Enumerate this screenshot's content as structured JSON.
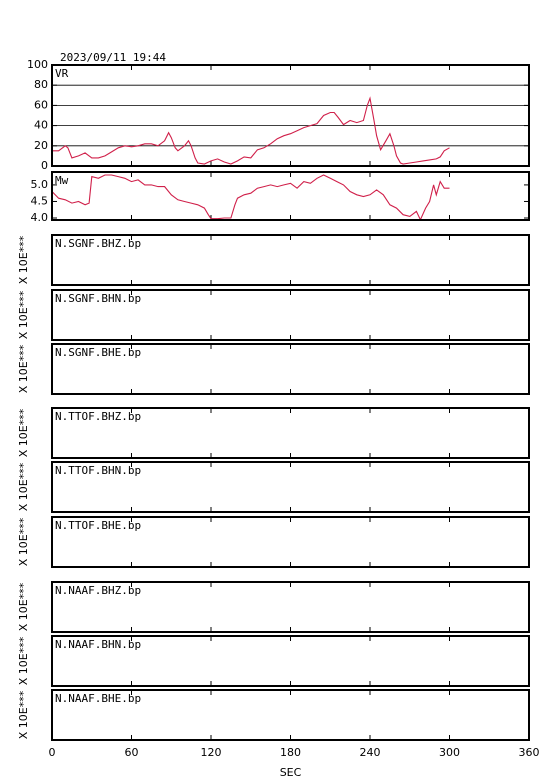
{
  "chart_data": [
    {
      "type": "line",
      "title": "2023/09/11 19:44",
      "label": "VR",
      "x": [
        0,
        5,
        10,
        12,
        15,
        20,
        25,
        30,
        35,
        40,
        45,
        50,
        55,
        60,
        65,
        70,
        75,
        80,
        85,
        88,
        90,
        93,
        95,
        100,
        103,
        105,
        108,
        110,
        115,
        120,
        125,
        130,
        135,
        140,
        145,
        150,
        155,
        160,
        165,
        170,
        175,
        180,
        185,
        190,
        195,
        200,
        205,
        210,
        213,
        216,
        220,
        225,
        230,
        235,
        238,
        240,
        243,
        245,
        248,
        252,
        255,
        258,
        260,
        263,
        265,
        270,
        275,
        280,
        285,
        290,
        293,
        296,
        300
      ],
      "series": [
        {
          "name": "VR",
          "color": "#d0204a",
          "values": [
            15,
            15,
            20,
            18,
            8,
            10,
            13,
            8,
            8,
            10,
            14,
            18,
            20,
            19,
            20,
            22,
            22,
            20,
            25,
            33,
            28,
            18,
            15,
            20,
            25,
            20,
            8,
            3,
            2,
            5,
            7,
            4,
            2,
            5,
            9,
            8,
            16,
            18,
            22,
            27,
            30,
            32,
            35,
            38,
            40,
            42,
            50,
            53,
            53,
            48,
            41,
            45,
            43,
            45,
            60,
            67,
            45,
            30,
            16,
            25,
            32,
            20,
            10,
            3,
            2,
            3,
            4,
            5,
            6,
            7,
            9,
            15,
            18
          ]
        }
      ],
      "ylim": [
        0,
        100
      ],
      "yticks": [
        0,
        20,
        40,
        60,
        80,
        100
      ],
      "grid": true
    },
    {
      "type": "line",
      "label": "Mw",
      "x": [
        0,
        5,
        10,
        15,
        20,
        25,
        28,
        30,
        35,
        40,
        45,
        50,
        55,
        60,
        65,
        70,
        75,
        80,
        85,
        90,
        95,
        100,
        105,
        110,
        115,
        118,
        120,
        125,
        130,
        135,
        138,
        140,
        145,
        150,
        155,
        160,
        165,
        170,
        175,
        180,
        185,
        190,
        195,
        200,
        205,
        210,
        215,
        220,
        225,
        230,
        235,
        240,
        245,
        250,
        255,
        260,
        265,
        270,
        275,
        278,
        282,
        285,
        288,
        290,
        293,
        296,
        300
      ],
      "series": [
        {
          "name": "Mw",
          "color": "#d0204a",
          "values": [
            4.8,
            4.6,
            4.55,
            4.45,
            4.5,
            4.4,
            4.45,
            5.25,
            5.2,
            5.3,
            5.3,
            5.25,
            5.2,
            5.1,
            5.15,
            5.0,
            5.0,
            4.95,
            4.95,
            4.7,
            4.55,
            4.5,
            4.45,
            4.4,
            4.3,
            4.1,
            3.98,
            3.98,
            4.0,
            4.0,
            4.4,
            4.6,
            4.7,
            4.75,
            4.9,
            4.95,
            5.0,
            4.95,
            5.0,
            5.05,
            4.9,
            5.1,
            5.05,
            5.2,
            5.3,
            5.2,
            5.1,
            5.0,
            4.8,
            4.7,
            4.65,
            4.7,
            4.85,
            4.7,
            4.4,
            4.3,
            4.1,
            4.05,
            4.2,
            3.95,
            4.3,
            4.5,
            5.0,
            4.7,
            5.1,
            4.9,
            4.9
          ]
        }
      ],
      "ylim": [
        3.94,
        5.39
      ],
      "yticks": [
        {
          "value": 4,
          "label": "4.0"
        },
        4.5,
        {
          "value": 5,
          "label": "5.0"
        }
      ],
      "grid": false
    },
    {
      "type": "trace",
      "label": "N.SGNF.BHZ.bp",
      "ylabel": "X 10E***"
    },
    {
      "type": "trace",
      "label": "N.SGNF.BHN.bp",
      "ylabel": "X 10E***"
    },
    {
      "type": "trace",
      "label": "N.SGNF.BHE.bp",
      "ylabel": "X 10E***"
    },
    {
      "type": "trace",
      "label": "N.TTOF.BHZ.bp",
      "ylabel": "X 10E***"
    },
    {
      "type": "trace",
      "label": "N.TTOF.BHN.bp",
      "ylabel": "X 10E***"
    },
    {
      "type": "trace",
      "label": "N.TTOF.BHE.bp",
      "ylabel": "X 10E***"
    },
    {
      "type": "trace",
      "label": "N.NAAF.BHZ.bp",
      "ylabel": "X 10E***"
    },
    {
      "type": "trace",
      "label": "N.NAAF.BHN.bp",
      "ylabel": "X 10E***"
    },
    {
      "type": "trace",
      "label": "N.NAAF.BHE.bp",
      "ylabel": "X 10E***",
      "xlim": [
        0,
        360
      ],
      "xticks": [
        0,
        60,
        120,
        180,
        240,
        300,
        360
      ],
      "xlabel": "SEC"
    }
  ]
}
